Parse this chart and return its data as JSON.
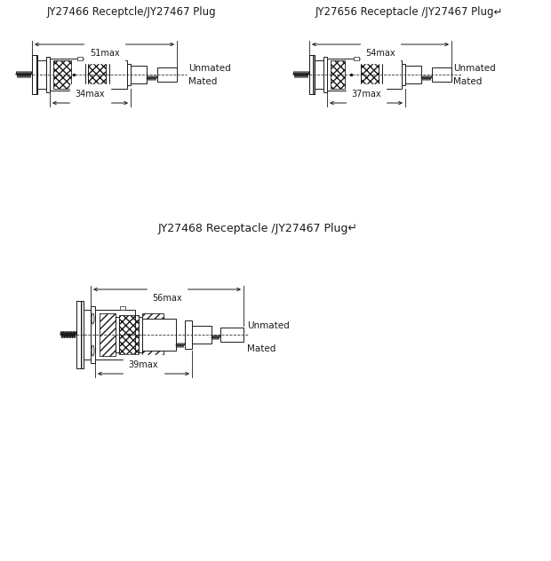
{
  "title1": "JY27466 Receptcle/JY27467 Plug",
  "title2": "JY27656 Receptacle /JY27467 Plug↵",
  "title3": "JY27468 Receptacle /JY27467 Plug↵",
  "label_mated": "Mated",
  "label_unmated": "Unmated",
  "dim1_top": "34max",
  "dim1_bot": "51max",
  "dim2_top": "37max",
  "dim2_bot": "54max",
  "dim3_top": "39max",
  "dim3_bot": "56max",
  "bg_color": "#ffffff",
  "line_color": "#1a1a1a",
  "font_size_title": 8.5,
  "font_size_label": 7.5,
  "font_size_dim": 7
}
